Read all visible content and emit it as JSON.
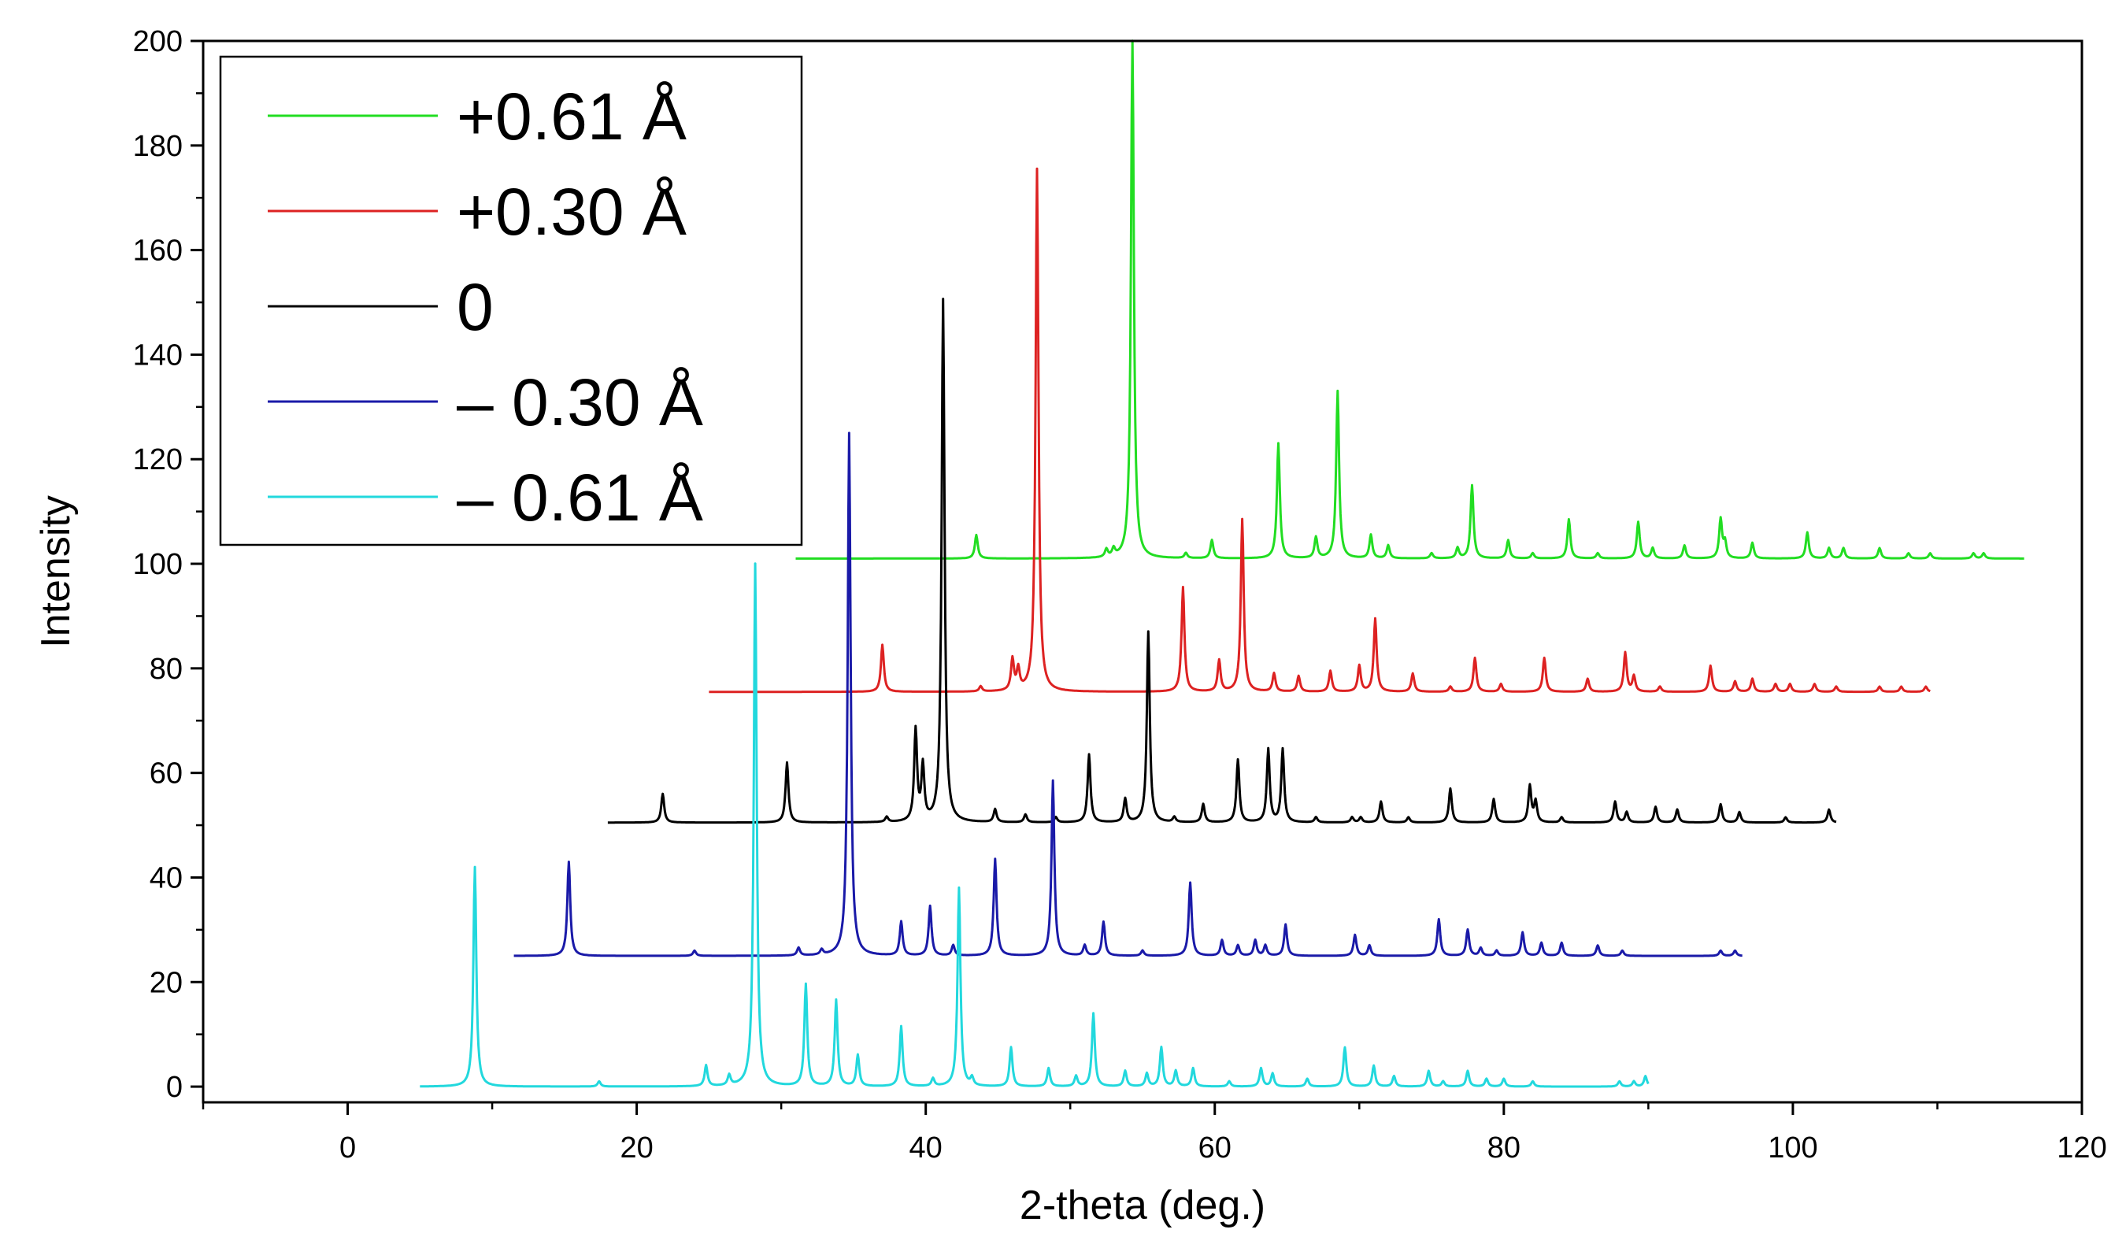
{
  "chart_data": {
    "type": "line",
    "title": "",
    "xlabel": "2-theta (deg.)",
    "ylabel": "Intensity",
    "xlim": [
      -10,
      120
    ],
    "ylim": [
      -3,
      200
    ],
    "xticks": [
      0,
      20,
      40,
      60,
      80,
      100,
      120
    ],
    "yticks": [
      0,
      20,
      40,
      60,
      80,
      100,
      120,
      140,
      160,
      180,
      200
    ],
    "legend_position": "top-left",
    "legend": [
      {
        "label": "+0.61 Å",
        "color": "#22dd22"
      },
      {
        "label": "+0.30 Å",
        "color": "#dd2222"
      },
      {
        "label": "  0",
        "color": "#000000"
      },
      {
        "label": "– 0.30 Å",
        "color": "#1a1aa8"
      },
      {
        "label": "– 0.61 Å",
        "color": "#22d8dd"
      }
    ],
    "series": [
      {
        "name": "+0.61 Å",
        "color": "#22dd22",
        "baseline": 101,
        "x_range": [
          31,
          116
        ],
        "peaks": [
          [
            43.5,
            4.5
          ],
          [
            52.5,
            1.5
          ],
          [
            53,
            1.5
          ],
          [
            54.3,
            99
          ],
          [
            58,
            1
          ],
          [
            59.8,
            3.5
          ],
          [
            64.4,
            22
          ],
          [
            67,
            4
          ],
          [
            68.5,
            32
          ],
          [
            70.8,
            4.5
          ],
          [
            72,
            2.5
          ],
          [
            75,
            1
          ],
          [
            76.8,
            2
          ],
          [
            77.8,
            14
          ],
          [
            80.3,
            3.5
          ],
          [
            82,
            1
          ],
          [
            84.5,
            7.5
          ],
          [
            86.5,
            1
          ],
          [
            89.3,
            7
          ],
          [
            90.3,
            2
          ],
          [
            92.5,
            2.5
          ],
          [
            95,
            7.5
          ],
          [
            95.3,
            3
          ],
          [
            97.2,
            3
          ],
          [
            101,
            5
          ],
          [
            102.5,
            2
          ],
          [
            103.5,
            2
          ],
          [
            106,
            2
          ],
          [
            108,
            1
          ],
          [
            109.5,
            1
          ],
          [
            112.5,
            1
          ],
          [
            113.2,
            1
          ]
        ]
      },
      {
        "name": "+0.30 Å",
        "color": "#dd2222",
        "baseline": 75.5,
        "x_range": [
          25,
          109.5
        ],
        "peaks": [
          [
            37,
            9
          ],
          [
            43.8,
            1
          ],
          [
            46,
            6
          ],
          [
            46.4,
            4
          ],
          [
            47.7,
            100
          ],
          [
            57.8,
            20
          ],
          [
            60.3,
            6
          ],
          [
            61.9,
            33
          ],
          [
            64.1,
            3.5
          ],
          [
            65.8,
            3
          ],
          [
            68,
            4
          ],
          [
            70,
            5
          ],
          [
            71.1,
            14
          ],
          [
            73.7,
            3.5
          ],
          [
            76.3,
            1
          ],
          [
            78,
            6.5
          ],
          [
            79.8,
            1.5
          ],
          [
            82.8,
            6.5
          ],
          [
            85.8,
            2.5
          ],
          [
            88.4,
            7.5
          ],
          [
            89,
            3
          ],
          [
            90.8,
            1
          ],
          [
            94.3,
            5
          ],
          [
            96,
            2
          ],
          [
            97.2,
            2.5
          ],
          [
            98.8,
            1.5
          ],
          [
            99.8,
            1.5
          ],
          [
            101.5,
            1.5
          ],
          [
            103,
            1
          ],
          [
            106,
            1
          ],
          [
            107.5,
            1
          ],
          [
            109.2,
            1
          ]
        ]
      },
      {
        "name": "  0",
        "color": "#000000",
        "baseline": 50.5,
        "x_range": [
          18,
          103
        ],
        "peaks": [
          [
            21.8,
            5.5
          ],
          [
            30.4,
            11.5
          ],
          [
            37.3,
            1
          ],
          [
            39.3,
            17.5
          ],
          [
            39.8,
            10.5
          ],
          [
            41.2,
            100
          ],
          [
            44.8,
            2.5
          ],
          [
            46.9,
            1.5
          ],
          [
            49,
            1
          ],
          [
            51.3,
            13
          ],
          [
            53.8,
            4.5
          ],
          [
            55.4,
            36.5
          ],
          [
            57.2,
            1
          ],
          [
            59.2,
            3.5
          ],
          [
            61.6,
            12
          ],
          [
            63.7,
            14
          ],
          [
            64.7,
            14
          ],
          [
            67,
            1
          ],
          [
            69.5,
            1
          ],
          [
            70.1,
            1
          ],
          [
            71.5,
            4
          ],
          [
            73.4,
            1
          ],
          [
            76.3,
            6.5
          ],
          [
            79.3,
            4.5
          ],
          [
            81.8,
            7
          ],
          [
            82.2,
            4
          ],
          [
            84,
            1
          ],
          [
            87.7,
            4
          ],
          [
            88.5,
            2
          ],
          [
            90.5,
            3
          ],
          [
            92,
            2.5
          ],
          [
            95,
            3.5
          ],
          [
            96.3,
            2
          ],
          [
            99.5,
            1
          ],
          [
            102.5,
            2.5
          ]
        ]
      },
      {
        "name": "– 0.30 Å",
        "color": "#1a1aa8",
        "baseline": 25,
        "x_range": [
          11.5,
          96.5
        ],
        "peaks": [
          [
            15.3,
            18
          ],
          [
            24,
            1
          ],
          [
            31.2,
            1.5
          ],
          [
            32.8,
            1
          ],
          [
            34.7,
            100
          ],
          [
            38.3,
            6.5
          ],
          [
            40.3,
            9.5
          ],
          [
            41.9,
            2
          ],
          [
            44.8,
            18.5
          ],
          [
            48.8,
            33.5
          ],
          [
            51,
            2
          ],
          [
            52.3,
            6.5
          ],
          [
            55,
            1
          ],
          [
            58.3,
            14
          ],
          [
            60.5,
            3
          ],
          [
            61.6,
            2
          ],
          [
            62.8,
            3
          ],
          [
            63.5,
            2
          ],
          [
            64.9,
            6
          ],
          [
            69.7,
            4
          ],
          [
            70.7,
            2
          ],
          [
            75.5,
            7
          ],
          [
            77.5,
            5
          ],
          [
            78.4,
            1.5
          ],
          [
            79.5,
            1
          ],
          [
            81.3,
            4.5
          ],
          [
            82.6,
            2.5
          ],
          [
            84,
            2.5
          ],
          [
            86.5,
            2
          ],
          [
            88.2,
            1
          ],
          [
            95,
            1
          ],
          [
            96,
            1
          ]
        ]
      },
      {
        "name": "– 0.61 Å",
        "color": "#22d8dd",
        "baseline": 0,
        "x_range": [
          5,
          90
        ],
        "peaks": [
          [
            8.8,
            42
          ],
          [
            17.4,
            1
          ],
          [
            24.8,
            4
          ],
          [
            26.4,
            2
          ],
          [
            28.2,
            100
          ],
          [
            31.7,
            19.5
          ],
          [
            33.8,
            16.5
          ],
          [
            35.3,
            6
          ],
          [
            38.3,
            11.5
          ],
          [
            40.5,
            1.5
          ],
          [
            42.3,
            38
          ],
          [
            43.2,
            1.5
          ],
          [
            45.9,
            7.5
          ],
          [
            48.5,
            3.5
          ],
          [
            50.4,
            2
          ],
          [
            51.6,
            14
          ],
          [
            53.8,
            3
          ],
          [
            55.3,
            2.5
          ],
          [
            56.3,
            7.5
          ],
          [
            57.3,
            3
          ],
          [
            58.5,
            3.5
          ],
          [
            61,
            1
          ],
          [
            63.2,
            3.5
          ],
          [
            64,
            2.5
          ],
          [
            66.4,
            1.5
          ],
          [
            69,
            7.5
          ],
          [
            71,
            4
          ],
          [
            72.4,
            2
          ],
          [
            74.8,
            3
          ],
          [
            75.8,
            1
          ],
          [
            77.5,
            3
          ],
          [
            78.8,
            1.5
          ],
          [
            80,
            1.5
          ],
          [
            82,
            1
          ],
          [
            88,
            1
          ],
          [
            89,
            1
          ],
          [
            89.8,
            2
          ]
        ]
      }
    ]
  }
}
